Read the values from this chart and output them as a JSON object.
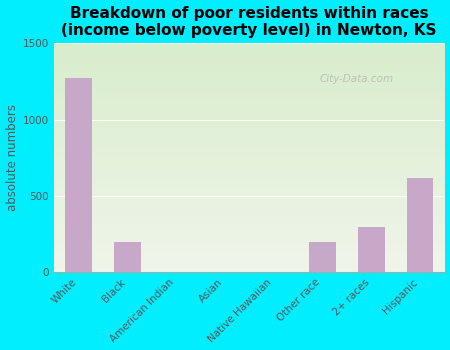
{
  "categories": [
    "White",
    "Black",
    "American Indian",
    "Asian",
    "Native Hawaiian",
    "Other race",
    "2+ races",
    "Hispanic"
  ],
  "values": [
    1270,
    200,
    0,
    0,
    0,
    195,
    295,
    615
  ],
  "bar_color": "#c8a8c8",
  "title": "Breakdown of poor residents within races\n(income below poverty level) in Newton, KS",
  "ylabel": "absolute numbers",
  "ylim": [
    0,
    1500
  ],
  "yticks": [
    0,
    500,
    1000,
    1500
  ],
  "background_color": "#00eeff",
  "plot_bg_color_top": "#d8edcc",
  "plot_bg_color_bottom": "#f0f5ea",
  "title_fontsize": 11,
  "ylabel_fontsize": 8.5,
  "tick_fontsize": 7.5,
  "watermark": "City-Data.com"
}
